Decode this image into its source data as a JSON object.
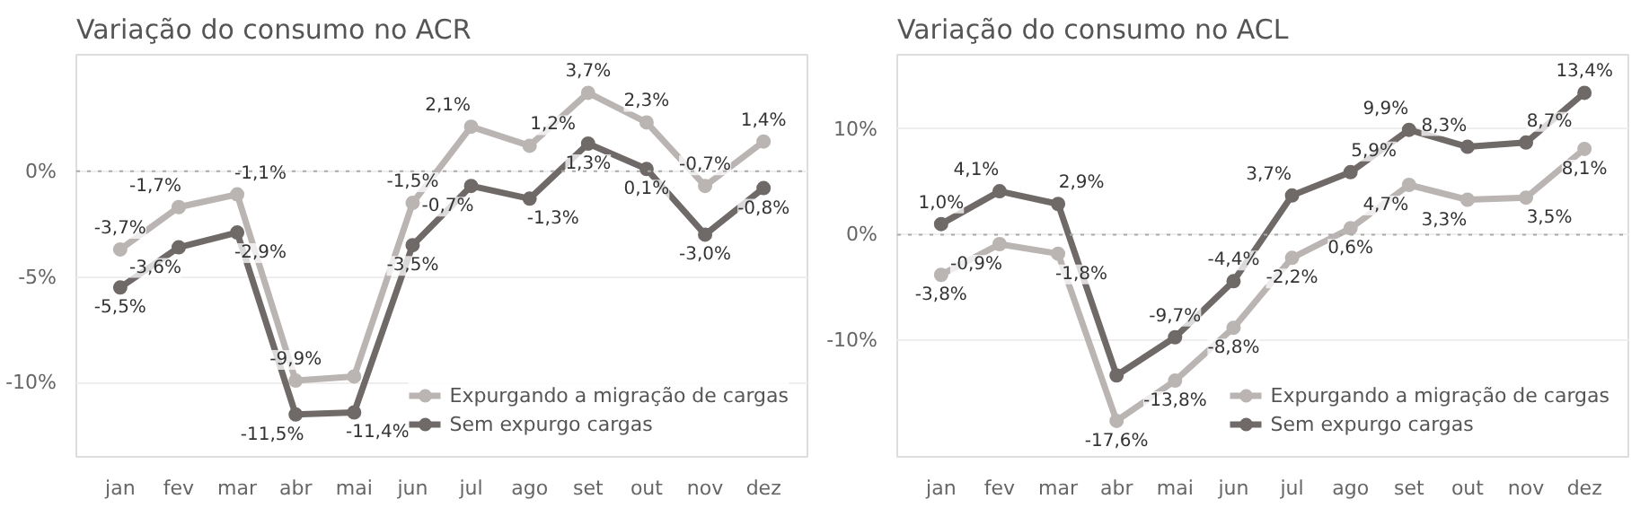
{
  "chart_data": [
    {
      "type": "line",
      "title": "Variação do consumo no ACR",
      "categories": [
        "jan",
        "fev",
        "mar",
        "abr",
        "mai",
        "jun",
        "jul",
        "ago",
        "set",
        "out",
        "nov",
        "dez"
      ],
      "ylim": [
        -13.5,
        5.5
      ],
      "yticks": [
        {
          "value": -10,
          "label": "-10%"
        },
        {
          "value": -5,
          "label": "-5%"
        },
        {
          "value": 0,
          "label": "0%"
        }
      ],
      "grid": "y",
      "legend": "bottom right",
      "marker": "circle",
      "line_style": "solid",
      "ref_lines": [
        {
          "axis": "y",
          "value": 0,
          "line_style": "dotted",
          "color": "#aaaaaa"
        }
      ],
      "series": [
        {
          "name": "Expurgando a migração de cargas",
          "color": "#bab5b3",
          "values": [
            -3.7,
            -1.7,
            -1.1,
            -9.9,
            -9.7,
            -1.5,
            2.1,
            1.2,
            3.7,
            2.3,
            -0.7,
            1.4
          ],
          "value_labels": [
            "-3,7%",
            "-1,7%",
            "-1,1%",
            "-9,9%",
            null,
            "-1,5%",
            "2,1%",
            "1,2%",
            "3,7%",
            "2,3%",
            "-0,7%",
            "1,4%"
          ]
        },
        {
          "name": "Sem expurgo cargas",
          "color": "#6f6968",
          "values": [
            -5.5,
            -3.6,
            -2.9,
            -11.5,
            -11.4,
            -3.5,
            -0.7,
            -1.3,
            1.3,
            0.1,
            -3.0,
            -0.8
          ],
          "value_labels": [
            "-5,5%",
            "-3,6%",
            "-2,9%",
            "-11,5%",
            "-11,4%",
            "-3,5%",
            "-0,7%",
            "-1,3%",
            "1,3%",
            "0,1%",
            "-3,0%",
            "-0,8%"
          ]
        }
      ]
    },
    {
      "type": "line",
      "title": "Variação do consumo no ACL",
      "categories": [
        "jan",
        "fev",
        "mar",
        "abr",
        "mai",
        "jun",
        "jul",
        "ago",
        "set",
        "out",
        "nov",
        "dez"
      ],
      "ylim": [
        -21.0,
        17.0
      ],
      "yticks": [
        {
          "value": -10,
          "label": "-10%"
        },
        {
          "value": 0,
          "label": "0%"
        },
        {
          "value": 10,
          "label": "10%"
        }
      ],
      "grid": "y",
      "legend": "bottom right",
      "marker": "circle",
      "line_style": "solid",
      "ref_lines": [
        {
          "axis": "y",
          "value": 0,
          "line_style": "dotted",
          "color": "#aaaaaa"
        }
      ],
      "series": [
        {
          "name": "Expurgando a migração de cargas",
          "color": "#bab5b3",
          "values": [
            -3.8,
            -0.9,
            -1.8,
            -17.6,
            -13.8,
            -8.8,
            -2.2,
            0.6,
            4.7,
            3.3,
            3.5,
            8.1
          ],
          "value_labels": [
            "-3,8%",
            "-0,9%",
            "-1,8%",
            "-17,6%",
            "-13,8%",
            "-8,8%",
            "-2,2%",
            "0,6%",
            "4,7%",
            "3,3%",
            "3,5%",
            "8,1%"
          ]
        },
        {
          "name": "Sem expurgo cargas",
          "color": "#6f6968",
          "values": [
            1.0,
            4.1,
            2.9,
            -13.3,
            -9.7,
            -4.4,
            3.7,
            5.9,
            9.9,
            8.3,
            8.7,
            13.4
          ],
          "value_labels": [
            "1,0%",
            "4,1%",
            "2,9%",
            null,
            "-9,7%",
            "-4,4%",
            "3,7%",
            "5,9%",
            "9,9%",
            "8,3%",
            "8,7%",
            "13,4%"
          ]
        }
      ]
    }
  ]
}
